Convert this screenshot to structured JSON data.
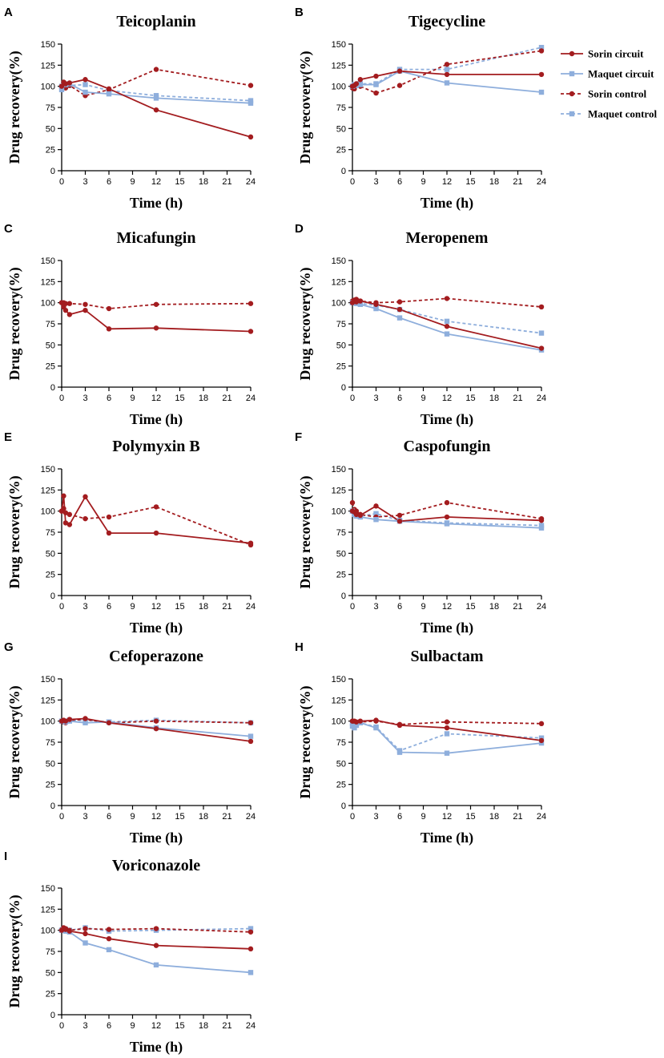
{
  "colors": {
    "sorin": "#a31c1f",
    "maquet": "#8eaedc",
    "axis": "#000000"
  },
  "legend": [
    {
      "label": "Sorin circuit",
      "color": "#a31c1f",
      "dashed": false,
      "marker": "circle"
    },
    {
      "label": "Maquet circuit",
      "color": "#8eaedc",
      "dashed": false,
      "marker": "square"
    },
    {
      "label": "Sorin control",
      "color": "#a31c1f",
      "dashed": true,
      "marker": "circle"
    },
    {
      "label": "Maquet control",
      "color": "#8eaedc",
      "dashed": true,
      "marker": "square"
    }
  ],
  "chart_data": [
    {
      "panel": "A",
      "type": "line",
      "title": "Teicoplanin",
      "xlabel": "Time (h)",
      "ylabel": "Drug recovery(%)",
      "xlim": [
        0,
        24
      ],
      "ylim": [
        0,
        150
      ],
      "xticks": [
        0,
        3,
        6,
        9,
        12,
        15,
        18,
        21,
        24
      ],
      "yticks": [
        0,
        25,
        50,
        75,
        100,
        125,
        150
      ],
      "series": [
        {
          "name": "Sorin circuit",
          "x": [
            0,
            0.25,
            0.5,
            1,
            3,
            6,
            12,
            24
          ],
          "y": [
            100,
            105,
            103,
            104,
            108,
            97,
            72,
            40
          ]
        },
        {
          "name": "Maquet circuit",
          "x": [
            0,
            0.25,
            0.5,
            1,
            3,
            6,
            12,
            24
          ],
          "y": [
            96,
            103,
            102,
            103,
            93,
            91,
            86,
            80
          ]
        },
        {
          "name": "Sorin control",
          "x": [
            0,
            0.25,
            0.5,
            1,
            3,
            6,
            12,
            24
          ],
          "y": [
            100,
            104,
            98,
            101,
            89,
            96,
            120,
            101
          ]
        },
        {
          "name": "Maquet control",
          "x": [
            0,
            0.25,
            0.5,
            1,
            3,
            6,
            12,
            24
          ],
          "y": [
            100,
            101,
            102,
            101,
            102,
            95,
            89,
            83
          ]
        }
      ]
    },
    {
      "panel": "B",
      "type": "line",
      "title": "Tigecycline",
      "xlabel": "Time (h)",
      "ylabel": "Drug recovery(%)",
      "xlim": [
        0,
        24
      ],
      "ylim": [
        0,
        150
      ],
      "xticks": [
        0,
        3,
        6,
        9,
        12,
        15,
        18,
        21,
        24
      ],
      "yticks": [
        0,
        25,
        50,
        75,
        100,
        125,
        150
      ],
      "series": [
        {
          "name": "Sorin circuit",
          "x": [
            0,
            0.25,
            0.5,
            1,
            3,
            6,
            12,
            24
          ],
          "y": [
            100,
            101,
            103,
            108,
            112,
            118,
            114,
            114
          ]
        },
        {
          "name": "Maquet circuit",
          "x": [
            0,
            0.25,
            0.5,
            1,
            3,
            6,
            12,
            24
          ],
          "y": [
            100,
            102,
            101,
            102,
            102,
            118,
            104,
            93
          ]
        },
        {
          "name": "Sorin control",
          "x": [
            0,
            0.25,
            0.5,
            1,
            3,
            6,
            12,
            24
          ],
          "y": [
            98,
            97,
            102,
            100,
            92,
            101,
            126,
            142
          ]
        },
        {
          "name": "Maquet control",
          "x": [
            0,
            0.25,
            0.5,
            1,
            3,
            6,
            12,
            24
          ],
          "y": [
            100,
            101,
            102,
            103,
            103,
            120,
            120,
            146
          ]
        }
      ]
    },
    {
      "panel": "C",
      "type": "line",
      "title": "Micafungin",
      "xlabel": "Time (h)",
      "ylabel": "Drug recovery(%)",
      "xlim": [
        0,
        24
      ],
      "ylim": [
        0,
        150
      ],
      "xticks": [
        0,
        3,
        6,
        9,
        12,
        15,
        18,
        21,
        24
      ],
      "yticks": [
        0,
        25,
        50,
        75,
        100,
        125,
        150
      ],
      "series": [
        {
          "name": "Sorin circuit",
          "x": [
            0,
            0.25,
            0.5,
            1,
            3,
            6,
            12,
            24
          ],
          "y": [
            100,
            95,
            91,
            86,
            91,
            69,
            70,
            66
          ]
        },
        {
          "name": "Sorin control",
          "x": [
            0,
            0.25,
            0.5,
            1,
            3,
            6,
            12,
            24
          ],
          "y": [
            100,
            100,
            99,
            99,
            98,
            93,
            98,
            99
          ]
        }
      ]
    },
    {
      "panel": "D",
      "type": "line",
      "title": "Meropenem",
      "xlabel": "Time (h)",
      "ylabel": "Drug recovery(%)",
      "xlim": [
        0,
        24
      ],
      "ylim": [
        0,
        150
      ],
      "xticks": [
        0,
        3,
        6,
        9,
        12,
        15,
        18,
        21,
        24
      ],
      "yticks": [
        0,
        25,
        50,
        75,
        100,
        125,
        150
      ],
      "series": [
        {
          "name": "Sorin circuit",
          "x": [
            0,
            0.25,
            0.5,
            1,
            3,
            6,
            12,
            24
          ],
          "y": [
            100,
            103,
            101,
            102,
            98,
            92,
            72,
            46
          ]
        },
        {
          "name": "Maquet circuit",
          "x": [
            0,
            0.25,
            0.5,
            1,
            3,
            6,
            12,
            24
          ],
          "y": [
            100,
            100,
            99,
            98,
            93,
            82,
            63,
            44
          ]
        },
        {
          "name": "Sorin control",
          "x": [
            0,
            0.25,
            0.5,
            1,
            3,
            6,
            12,
            24
          ],
          "y": [
            102,
            103,
            104,
            102,
            100,
            101,
            105,
            95
          ]
        },
        {
          "name": "Maquet control",
          "x": [
            0,
            0.25,
            0.5,
            1,
            3,
            6,
            12,
            24
          ],
          "y": [
            100,
            100,
            100,
            99,
            97,
            92,
            78,
            64
          ]
        }
      ]
    },
    {
      "panel": "E",
      "type": "line",
      "title": "Polymyxin B",
      "xlabel": "Time (h)",
      "ylabel": "Drug recovery(%)",
      "xlim": [
        0,
        24
      ],
      "ylim": [
        0,
        150
      ],
      "xticks": [
        0,
        3,
        6,
        9,
        12,
        15,
        18,
        21,
        24
      ],
      "yticks": [
        0,
        25,
        50,
        75,
        100,
        125,
        150
      ],
      "series": [
        {
          "name": "Sorin circuit",
          "x": [
            0,
            0.25,
            0.5,
            1,
            3,
            6,
            12,
            24
          ],
          "y": [
            100,
            118,
            86,
            84,
            117,
            74,
            74,
            62
          ]
        },
        {
          "name": "Sorin control",
          "x": [
            0,
            0.25,
            0.5,
            1,
            3,
            6,
            12,
            24
          ],
          "y": [
            100,
            103,
            98,
            96,
            91,
            93,
            105,
            60
          ]
        }
      ]
    },
    {
      "panel": "F",
      "type": "line",
      "title": "Caspofungin",
      "xlabel": "Time (h)",
      "ylabel": "Drug recovery(%)",
      "xlim": [
        0,
        24
      ],
      "ylim": [
        0,
        150
      ],
      "xticks": [
        0,
        3,
        6,
        9,
        12,
        15,
        18,
        21,
        24
      ],
      "yticks": [
        0,
        25,
        50,
        75,
        100,
        125,
        150
      ],
      "series": [
        {
          "name": "Sorin circuit",
          "x": [
            0,
            0.25,
            0.5,
            1,
            3,
            6,
            12,
            24
          ],
          "y": [
            100,
            99,
            96,
            95,
            106,
            88,
            93,
            89
          ]
        },
        {
          "name": "Maquet circuit",
          "x": [
            0,
            0.25,
            0.5,
            1,
            3,
            6,
            12,
            24
          ],
          "y": [
            100,
            96,
            94,
            93,
            90,
            88,
            85,
            80
          ]
        },
        {
          "name": "Sorin control",
          "x": [
            0,
            0.25,
            0.5,
            1,
            3,
            6,
            12,
            24
          ],
          "y": [
            110,
            102,
            100,
            96,
            93,
            95,
            110,
            91
          ]
        },
        {
          "name": "Maquet control",
          "x": [
            0,
            0.25,
            0.5,
            1,
            3,
            6,
            12,
            24
          ],
          "y": [
            100,
            97,
            95,
            94,
            97,
            89,
            86,
            83
          ]
        }
      ]
    },
    {
      "panel": "G",
      "type": "line",
      "title": "Cefoperazone",
      "xlabel": "Time (h)",
      "ylabel": "Drug recovery(%)",
      "xlim": [
        0,
        24
      ],
      "ylim": [
        0,
        150
      ],
      "xticks": [
        0,
        3,
        6,
        9,
        12,
        15,
        18,
        21,
        24
      ],
      "yticks": [
        0,
        25,
        50,
        75,
        100,
        125,
        150
      ],
      "series": [
        {
          "name": "Sorin circuit",
          "x": [
            0,
            0.25,
            0.5,
            1,
            3,
            6,
            12,
            24
          ],
          "y": [
            100,
            101,
            100,
            102,
            103,
            98,
            91,
            76
          ]
        },
        {
          "name": "Maquet circuit",
          "x": [
            0,
            0.25,
            0.5,
            1,
            3,
            6,
            12,
            24
          ],
          "y": [
            100,
            100,
            99,
            100,
            98,
            99,
            92,
            82
          ]
        },
        {
          "name": "Sorin control",
          "x": [
            0,
            0.25,
            0.5,
            1,
            3,
            6,
            12,
            24
          ],
          "y": [
            100,
            99,
            98,
            101,
            102,
            98,
            100,
            98
          ]
        },
        {
          "name": "Maquet control",
          "x": [
            0,
            0.25,
            0.5,
            1,
            3,
            6,
            12,
            24
          ],
          "y": [
            100,
            100,
            100,
            101,
            101,
            99,
            101,
            98
          ]
        }
      ]
    },
    {
      "panel": "H",
      "type": "line",
      "title": "Sulbactam",
      "xlabel": "Time (h)",
      "ylabel": "Drug recovery(%)",
      "xlim": [
        0,
        24
      ],
      "ylim": [
        0,
        150
      ],
      "xticks": [
        0,
        3,
        6,
        9,
        12,
        15,
        18,
        21,
        24
      ],
      "yticks": [
        0,
        25,
        50,
        75,
        100,
        125,
        150
      ],
      "series": [
        {
          "name": "Sorin circuit",
          "x": [
            0,
            0.25,
            0.5,
            1,
            3,
            6,
            12,
            24
          ],
          "y": [
            100,
            100,
            99,
            100,
            101,
            95,
            92,
            77
          ]
        },
        {
          "name": "Maquet circuit",
          "x": [
            0,
            0.25,
            0.5,
            1,
            3,
            6,
            12,
            24
          ],
          "y": [
            94,
            92,
            95,
            98,
            92,
            63,
            62,
            74
          ]
        },
        {
          "name": "Sorin control",
          "x": [
            0,
            0.25,
            0.5,
            1,
            3,
            6,
            12,
            24
          ],
          "y": [
            100,
            99,
            98,
            99,
            100,
            96,
            99,
            97
          ]
        },
        {
          "name": "Maquet control",
          "x": [
            0,
            0.25,
            0.5,
            1,
            3,
            6,
            12,
            24
          ],
          "y": [
            97,
            96,
            97,
            98,
            93,
            65,
            85,
            80
          ]
        }
      ]
    },
    {
      "panel": "I",
      "type": "line",
      "title": "Voriconazole",
      "xlabel": "Time (h)",
      "ylabel": "Drug recovery(%)",
      "xlim": [
        0,
        24
      ],
      "ylim": [
        0,
        150
      ],
      "xticks": [
        0,
        3,
        6,
        9,
        12,
        15,
        18,
        21,
        24
      ],
      "yticks": [
        0,
        25,
        50,
        75,
        100,
        125,
        150
      ],
      "series": [
        {
          "name": "Sorin circuit",
          "x": [
            0,
            0.25,
            0.5,
            1,
            3,
            6,
            12,
            24
          ],
          "y": [
            100,
            102,
            101,
            99,
            96,
            90,
            82,
            78
          ]
        },
        {
          "name": "Maquet circuit",
          "x": [
            0,
            0.25,
            0.5,
            1,
            3,
            6,
            12,
            24
          ],
          "y": [
            100,
            101,
            99,
            98,
            85,
            77,
            59,
            50
          ]
        },
        {
          "name": "Sorin control",
          "x": [
            0,
            0.25,
            0.5,
            1,
            3,
            6,
            12,
            24
          ],
          "y": [
            101,
            103,
            102,
            100,
            102,
            101,
            102,
            98
          ]
        },
        {
          "name": "Maquet control",
          "x": [
            0,
            0.25,
            0.5,
            1,
            3,
            6,
            12,
            24
          ],
          "y": [
            100,
            101,
            101,
            100,
            103,
            99,
            100,
            102
          ]
        }
      ]
    }
  ]
}
